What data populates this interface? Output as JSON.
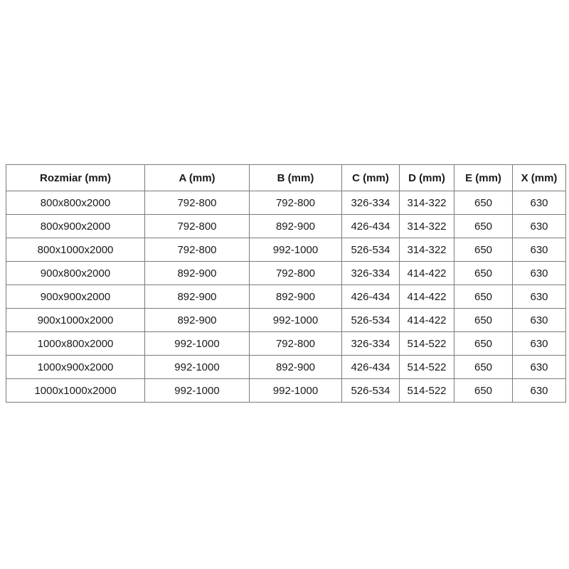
{
  "table": {
    "headers": [
      "Rozmiar (mm)",
      "A (mm)",
      "B (mm)",
      "C (mm)",
      "D (mm)",
      "E (mm)",
      "X (mm)"
    ],
    "rows": [
      [
        "800x800x2000",
        "792-800",
        "792-800",
        "326-334",
        "314-322",
        "650",
        "630"
      ],
      [
        "800x900x2000",
        "792-800",
        "892-900",
        "426-434",
        "314-322",
        "650",
        "630"
      ],
      [
        "800x1000x2000",
        "792-800",
        "992-1000",
        "526-534",
        "314-322",
        "650",
        "630"
      ],
      [
        "900x800x2000",
        "892-900",
        "792-800",
        "326-334",
        "414-422",
        "650",
        "630"
      ],
      [
        "900x900x2000",
        "892-900",
        "892-900",
        "426-434",
        "414-422",
        "650",
        "630"
      ],
      [
        "900x1000x2000",
        "892-900",
        "992-1000",
        "526-534",
        "414-422",
        "650",
        "630"
      ],
      [
        "1000x800x2000",
        "992-1000",
        "792-800",
        "326-334",
        "514-522",
        "650",
        "630"
      ],
      [
        "1000x900x2000",
        "992-1000",
        "892-900",
        "426-434",
        "514-522",
        "650",
        "630"
      ],
      [
        "1000x1000x2000",
        "992-1000",
        "992-1000",
        "526-534",
        "514-522",
        "650",
        "630"
      ]
    ]
  },
  "colors": {
    "border": "#7b7b7b",
    "text": "#1a1a1a",
    "background": "#ffffff"
  }
}
